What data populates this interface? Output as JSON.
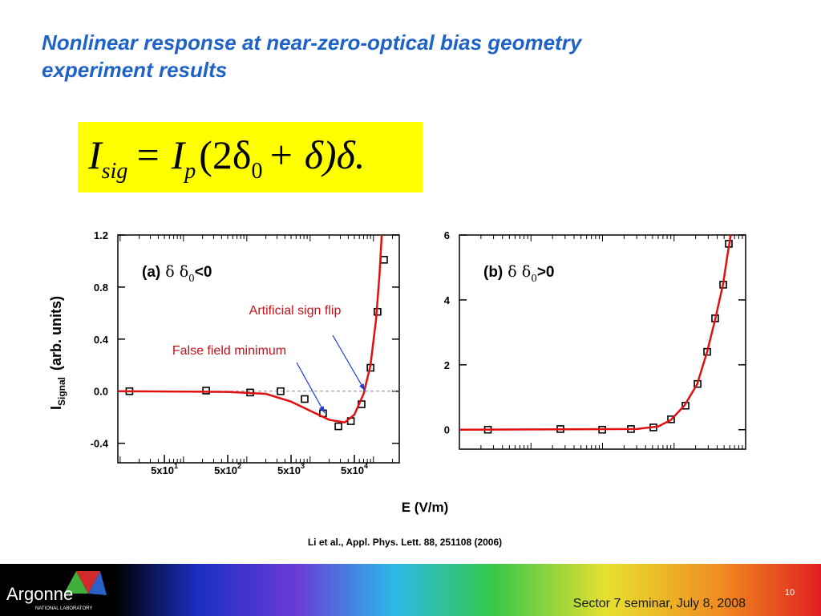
{
  "title_line1": "Nonlinear response at near-zero-optical bias geometry",
  "title_line2": "experiment results",
  "equation": {
    "parts": [
      "I",
      "sig",
      "= I",
      "p",
      "(2δ",
      "0",
      "+ δ)δ."
    ]
  },
  "chart_data": [
    {
      "type": "scatter",
      "xscale": "log",
      "xlim": [
        9.2,
        256000
      ],
      "ylim": [
        -0.55,
        1.2
      ],
      "xticks": [
        {
          "value": 50,
          "label": "5x10",
          "exponent": "1"
        },
        {
          "value": 500,
          "label": "5x10",
          "exponent": "2"
        },
        {
          "value": 5000,
          "label": "5x10",
          "exponent": "3"
        },
        {
          "value": 50000,
          "label": "5x10",
          "exponent": "4"
        }
      ],
      "yticks": [
        1.2,
        0.8,
        0.4,
        {
          "value": 0,
          "label": "0.0"
        },
        -0.4
      ],
      "zero_line": true,
      "panel_label": [
        "(a)",
        "δ δ",
        "0",
        "<0"
      ],
      "annotations": [
        {
          "text": "Artificial sign flip",
          "color": "#c0141c"
        },
        {
          "text": "False field minimum",
          "color": "#c0141c"
        }
      ],
      "series": [
        {
          "marker": "square",
          "color": "#000000",
          "x": [
            14,
            228,
            1130,
            3420,
            8200,
            16000,
            28000,
            44000,
            65000,
            90000,
            116000,
            147000
          ],
          "values": [
            0,
            0.005,
            -0.01,
            0,
            -0.06,
            -0.17,
            -0.27,
            -0.23,
            -0.1,
            0.18,
            0.61,
            1.01
          ]
        },
        {
          "marker": "line",
          "color": "#e01010",
          "x": [
            9.2,
            500,
            2000,
            5000,
            10000,
            20000,
            35000,
            50000,
            70000,
            90000,
            110000,
            125000,
            135000
          ],
          "values": [
            0,
            -0.005,
            -0.02,
            -0.08,
            -0.15,
            -0.22,
            -0.24,
            -0.18,
            -0.02,
            0.2,
            0.55,
            0.9,
            1.2
          ]
        }
      ]
    },
    {
      "type": "scatter",
      "xscale": "log",
      "xlim": [
        10,
        100000
      ],
      "ylim": [
        -0.6,
        6
      ],
      "yticks": [
        0,
        2,
        4,
        6
      ],
      "panel_label": [
        "(b)",
        "δ δ",
        "0",
        ">0"
      ],
      "series": [
        {
          "marker": "square",
          "color": "#000000",
          "x": [
            25,
            258,
            990,
            2500,
            5140,
            9080,
            14450,
            21300,
            29000,
            37500,
            48600,
            58200
          ],
          "values": [
            0,
            0.02,
            0,
            0.02,
            0.07,
            0.32,
            0.74,
            1.41,
            2.4,
            3.43,
            4.47,
            5.73
          ]
        },
        {
          "marker": "line",
          "color": "#e01010",
          "x": [
            10,
            3000,
            6000,
            9000,
            14000,
            21000,
            29000,
            37500,
            48600,
            55000,
            62000
          ],
          "values": [
            0,
            0.02,
            0.1,
            0.3,
            0.75,
            1.4,
            2.4,
            3.4,
            4.5,
            5.3,
            6
          ]
        }
      ]
    }
  ],
  "x_axis_label": "E (V/m)",
  "y_axis_label": {
    "main": "I",
    "sub": "Signal",
    "rest": "(arb. units)"
  },
  "citation": "Li et al., Appl. Phys. Lett. 88, 251108 (2006)",
  "footer": {
    "logo": "Argonne",
    "logo_sub": "NATIONAL LABORATORY",
    "event": "Sector 7 seminar, July 8, 2008",
    "page": "10"
  }
}
